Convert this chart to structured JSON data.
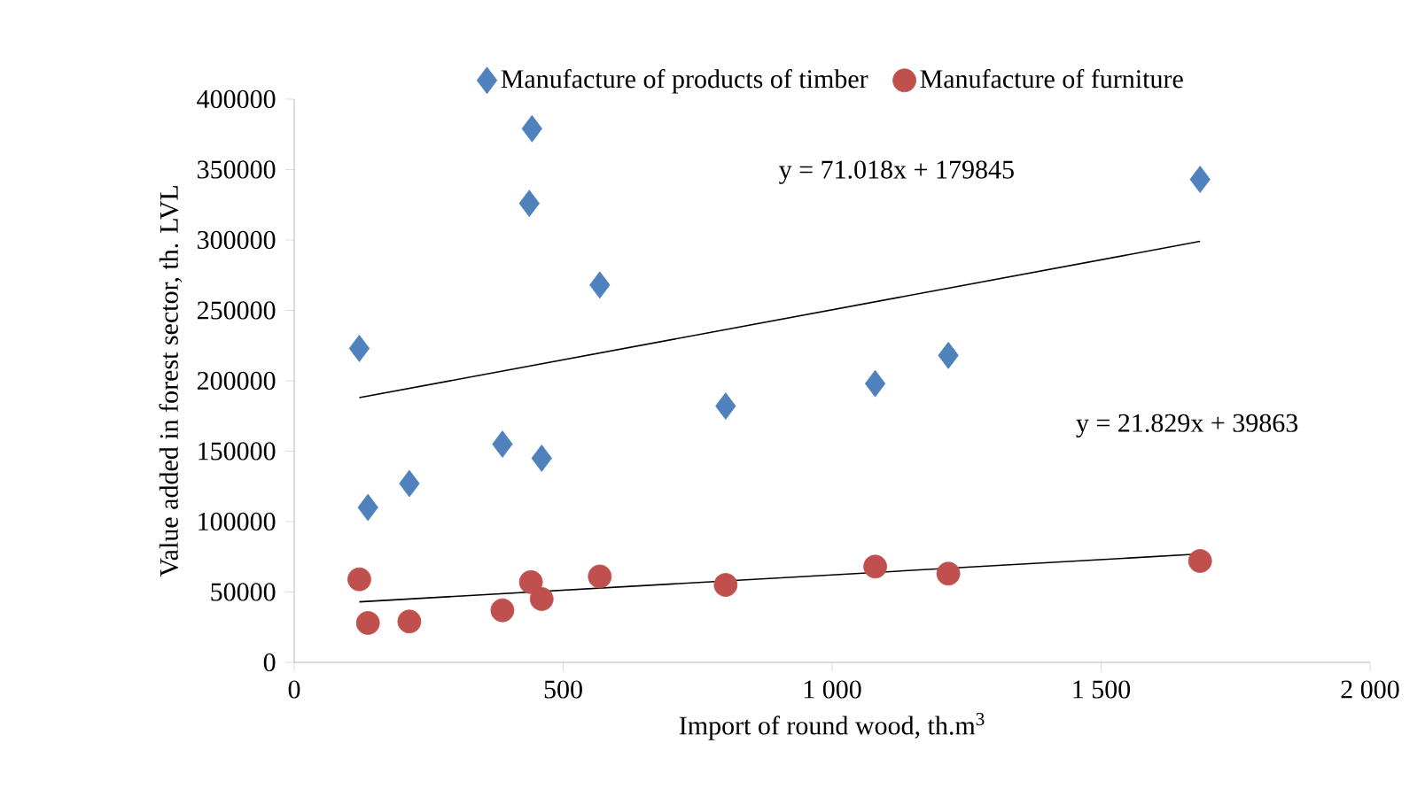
{
  "chart_data": {
    "type": "scatter",
    "xlabel": "Import of round wood, th.m$^{3}$",
    "ylabel": "Value added in forest sector, th. LVL",
    "xlim": [
      0,
      2000
    ],
    "ylim": [
      0,
      400000
    ],
    "xticks": [
      0,
      500,
      {
        "value": 1000,
        "label": "1 000"
      },
      {
        "value": 1500,
        "label": "1 500"
      },
      {
        "value": 2000,
        "label": "2 000"
      }
    ],
    "yticks": [
      0,
      50000,
      100000,
      150000,
      200000,
      250000,
      300000,
      350000,
      400000
    ],
    "grid": false,
    "legend": "top",
    "series": [
      {
        "name": "Manufacture of products of timber",
        "color": "#4f81bd",
        "marker": "diamond",
        "x": [
          121,
          137,
          214,
          387,
          442,
          437,
          460,
          568,
          802,
          1080,
          1216,
          1684
        ],
        "values": [
          223000,
          110000,
          127000,
          155000,
          379000,
          326000,
          145000,
          268000,
          182000,
          198000,
          218000,
          343000
        ]
      },
      {
        "name": "Manufacture of furniture",
        "color": "#c0504d",
        "marker": "circle",
        "x": [
          121,
          137,
          214,
          387,
          440,
          460,
          568,
          802,
          1080,
          1216,
          1684
        ],
        "values": [
          59000,
          28000,
          29000,
          37000,
          57000,
          45000,
          61000,
          55000,
          68000,
          63000,
          72000
        ]
      },
      {
        "type": "line",
        "color": "#000000",
        "marker": "none",
        "x": [
          121,
          1684
        ],
        "values": [
          188000,
          299000
        ]
      },
      {
        "type": "line",
        "color": "#000000",
        "marker": "none",
        "x": [
          121,
          1684
        ],
        "values": [
          43000,
          77000
        ]
      }
    ],
    "annotations": [
      "y = 71.018x + 179845",
      "y = 21.829x + 39863"
    ]
  }
}
